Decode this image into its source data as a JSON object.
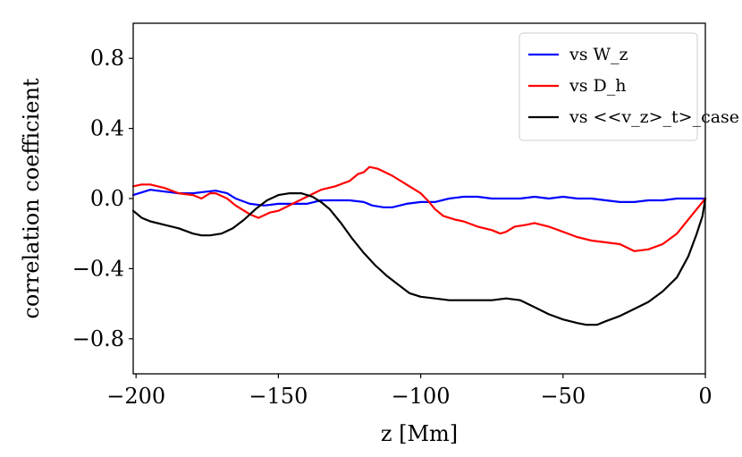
{
  "chart_data": {
    "type": "line",
    "title": "",
    "xlabel": "z [Mm]",
    "ylabel": "correlation coefficient",
    "xlim": [
      -201,
      0
    ],
    "ylim": [
      -1.0,
      1.0
    ],
    "xticks": [
      -200,
      -150,
      -100,
      -50,
      0
    ],
    "xtick_labels": [
      "−200",
      "−150",
      "−100",
      "−50",
      "0"
    ],
    "yticks": [
      -0.8,
      -0.4,
      0.0,
      0.4,
      0.8
    ],
    "ytick_labels": [
      "−0.8",
      "−0.4",
      "0.0",
      "0.4",
      "0.8"
    ],
    "grid": false,
    "legend_position": "top-right",
    "series": [
      {
        "name": "vs W_z",
        "color": "#0000ff",
        "x": [
          -201,
          -195,
          -190,
          -185,
          -180,
          -175,
          -172,
          -168,
          -165,
          -160,
          -155,
          -150,
          -145,
          -140,
          -135,
          -130,
          -125,
          -120,
          -117,
          -113,
          -110,
          -105,
          -100,
          -95,
          -90,
          -85,
          -80,
          -75,
          -70,
          -65,
          -60,
          -55,
          -50,
          -45,
          -40,
          -35,
          -30,
          -25,
          -20,
          -15,
          -10,
          -5,
          0
        ],
        "y": [
          0.02,
          0.05,
          0.04,
          0.03,
          0.03,
          0.04,
          0.045,
          0.03,
          0.0,
          -0.03,
          -0.04,
          -0.03,
          -0.03,
          -0.03,
          -0.01,
          -0.01,
          -0.01,
          -0.02,
          -0.04,
          -0.05,
          -0.05,
          -0.03,
          -0.02,
          -0.02,
          0.0,
          0.01,
          0.01,
          0.0,
          0.0,
          0.0,
          0.01,
          0.0,
          0.01,
          0.0,
          0.0,
          -0.01,
          -0.02,
          -0.02,
          -0.01,
          -0.01,
          0.0,
          0.0,
          0.0
        ]
      },
      {
        "name": "vs D_h",
        "color": "#ff0000",
        "x": [
          -201,
          -198,
          -195,
          -190,
          -185,
          -180,
          -177,
          -174,
          -172,
          -168,
          -165,
          -160,
          -157,
          -153,
          -150,
          -145,
          -140,
          -135,
          -130,
          -125,
          -122,
          -120,
          -118,
          -115,
          -110,
          -105,
          -100,
          -97,
          -95,
          -92,
          -88,
          -85,
          -80,
          -75,
          -72,
          -70,
          -67,
          -63,
          -60,
          -55,
          -50,
          -45,
          -40,
          -35,
          -30,
          -25,
          -20,
          -15,
          -10,
          -5,
          0
        ],
        "y": [
          0.07,
          0.08,
          0.08,
          0.06,
          0.03,
          0.02,
          0.0,
          0.03,
          0.03,
          0.0,
          -0.04,
          -0.09,
          -0.11,
          -0.08,
          -0.07,
          -0.03,
          0.01,
          0.05,
          0.07,
          0.1,
          0.14,
          0.15,
          0.18,
          0.17,
          0.13,
          0.08,
          0.03,
          -0.02,
          -0.06,
          -0.1,
          -0.12,
          -0.13,
          -0.16,
          -0.18,
          -0.2,
          -0.19,
          -0.16,
          -0.15,
          -0.14,
          -0.16,
          -0.19,
          -0.22,
          -0.24,
          -0.25,
          -0.26,
          -0.3,
          -0.29,
          -0.26,
          -0.2,
          -0.1,
          0.0
        ]
      },
      {
        "name": "vs <<v_z>_t>_case",
        "color": "#000000",
        "x": [
          -201,
          -198,
          -195,
          -190,
          -185,
          -180,
          -177,
          -174,
          -170,
          -166,
          -162,
          -158,
          -154,
          -150,
          -146,
          -142,
          -138,
          -135,
          -132,
          -128,
          -124,
          -120,
          -116,
          -112,
          -108,
          -104,
          -100,
          -95,
          -90,
          -85,
          -80,
          -75,
          -70,
          -65,
          -60,
          -55,
          -50,
          -45,
          -42,
          -38,
          -35,
          -30,
          -25,
          -20,
          -15,
          -10,
          -6,
          -3,
          -1,
          0
        ],
        "y": [
          -0.07,
          -0.11,
          -0.13,
          -0.15,
          -0.17,
          -0.2,
          -0.21,
          -0.21,
          -0.2,
          -0.17,
          -0.12,
          -0.06,
          -0.01,
          0.02,
          0.03,
          0.03,
          0.01,
          -0.02,
          -0.06,
          -0.14,
          -0.23,
          -0.31,
          -0.38,
          -0.44,
          -0.49,
          -0.54,
          -0.56,
          -0.57,
          -0.58,
          -0.58,
          -0.58,
          -0.58,
          -0.57,
          -0.58,
          -0.62,
          -0.66,
          -0.69,
          -0.71,
          -0.72,
          -0.72,
          -0.7,
          -0.67,
          -0.63,
          -0.59,
          -0.53,
          -0.45,
          -0.33,
          -0.2,
          -0.1,
          0.0
        ]
      }
    ]
  }
}
